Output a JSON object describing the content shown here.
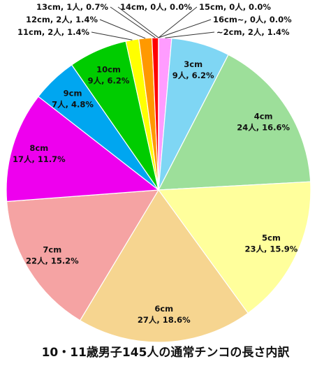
{
  "chart_data": {
    "type": "pie",
    "title": "10・11歳男子145人の通常チンコの長さ内訳",
    "categories": [
      "~2cm",
      "3cm",
      "4cm",
      "5cm",
      "6cm",
      "7cm",
      "8cm",
      "9cm",
      "10cm",
      "11cm",
      "12cm",
      "13cm",
      "14cm",
      "15cm",
      "16cm~"
    ],
    "values": [
      2,
      9,
      24,
      23,
      27,
      22,
      17,
      7,
      9,
      2,
      2,
      1,
      0,
      0,
      0
    ],
    "value_labels": [
      "2人, 1.4%",
      "9人, 6.2%",
      "24人, 16.6%",
      "23人, 15.9%",
      "27人, 18.6%",
      "22人, 15.2%",
      "17人, 11.7%",
      "7人, 4.8%",
      "9人, 6.2%",
      "2人, 1.4%",
      "2人, 1.4%",
      "1人, 0.7%",
      "0人, 0.0%",
      "0人, 0.0%",
      "0人, 0.0%"
    ],
    "label_separator": ", ",
    "colors": [
      "#ff9cff",
      "#7fd6f4",
      "#9ddf9a",
      "#ffff9c",
      "#f6d590",
      "#f5a3a3",
      "#ee00ee",
      "#00a6f0",
      "#00cc00",
      "#ffff00",
      "#ff9900",
      "#ff0000",
      "#9966cc",
      "#3366cc",
      "#999999"
    ]
  }
}
